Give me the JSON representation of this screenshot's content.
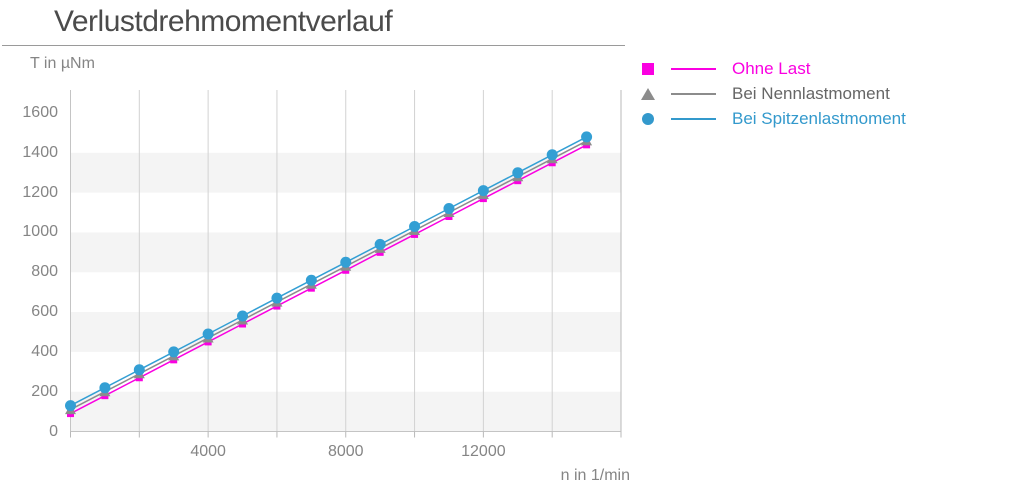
{
  "header": {
    "title": "Verlustdrehmomentverlauf"
  },
  "axes": {
    "y_label": "T in µNm",
    "x_label": "n in 1/min"
  },
  "legend": {
    "items": [
      {
        "label": "Ohne Last",
        "color": "#fa00e1",
        "label_color": "#fa00e1",
        "marker": "square"
      },
      {
        "label": "Bei Nennlastmoment",
        "color": "#8c8c8c",
        "label_color": "#666666",
        "marker": "triangle"
      },
      {
        "label": "Bei Spitzenlastmoment",
        "color": "#3399cc",
        "label_color": "#3399cc",
        "marker": "circle"
      }
    ]
  },
  "chart_data": {
    "type": "line",
    "title": "Verlustdrehmomentverlauf",
    "xlabel": "n in 1/min",
    "ylabel": "T in µNm",
    "x": [
      0,
      1000,
      2000,
      3000,
      4000,
      5000,
      6000,
      7000,
      8000,
      9000,
      10000,
      11000,
      12000,
      13000,
      14000,
      15000
    ],
    "series": [
      {
        "name": "Ohne Last",
        "color": "#fa00e1",
        "marker": "square",
        "values": [
          90,
          180,
          270,
          360,
          450,
          540,
          630,
          720,
          810,
          900,
          990,
          1080,
          1170,
          1260,
          1350,
          1440
        ]
      },
      {
        "name": "Bei Nennlastmoment",
        "color": "#8c8c8c",
        "marker": "triangle",
        "values": [
          110,
          200,
          290,
          380,
          470,
          560,
          650,
          740,
          830,
          920,
          1010,
          1100,
          1190,
          1280,
          1370,
          1460
        ]
      },
      {
        "name": "Bei Spitzenlastmoment",
        "color": "#339fd4",
        "marker": "circle",
        "values": [
          130,
          220,
          310,
          400,
          490,
          580,
          670,
          760,
          850,
          940,
          1030,
          1120,
          1210,
          1300,
          1390,
          1480
        ]
      }
    ],
    "xlim": [
      0,
      16000
    ],
    "ylim": [
      0,
      1715
    ],
    "x_gridline_step": 2000,
    "x_tick_labels": [
      {
        "value": 4000,
        "label": "4000"
      },
      {
        "value": 8000,
        "label": "8000"
      },
      {
        "value": 12000,
        "label": "12000"
      }
    ],
    "y_ticks": [
      "0",
      "200",
      "400",
      "600",
      "800",
      "1000",
      "1200",
      "1400",
      "1600"
    ],
    "y_tick_step": 200,
    "bands": [
      [
        0,
        200
      ],
      [
        400,
        600
      ],
      [
        800,
        1000
      ],
      [
        1200,
        1400
      ]
    ],
    "band_color": "#f4f4f4",
    "grid_color": "#d2d2d2",
    "axis_color": "#c4c4c4",
    "edge_color": "#b8b8b8",
    "legend_position": "right"
  }
}
